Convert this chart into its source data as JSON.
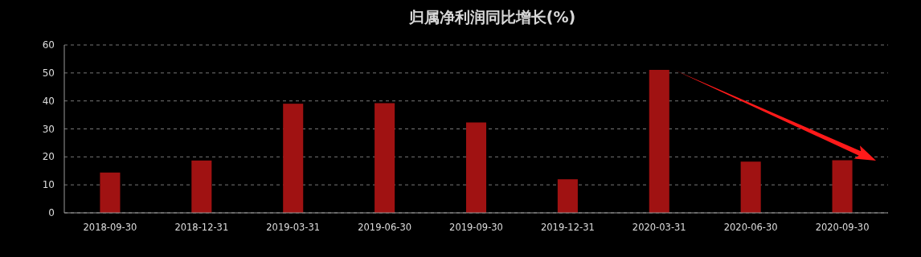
{
  "chart_data": {
    "type": "bar",
    "title": "归属净利润同比增长(%)",
    "categories": [
      "2018-09-30",
      "2018-12-31",
      "2019-03-31",
      "2019-06-30",
      "2019-09-30",
      "2019-12-31",
      "2020-03-31",
      "2020-06-30",
      "2020-09-30"
    ],
    "values": [
      14.4,
      18.7,
      39.0,
      39.2,
      32.3,
      12.0,
      51.1,
      18.3,
      18.8
    ],
    "color": "#a01212",
    "ylim": [
      0,
      60
    ],
    "yticks": [
      0,
      10,
      20,
      30,
      40,
      50,
      60
    ],
    "grid": "y"
  }
}
